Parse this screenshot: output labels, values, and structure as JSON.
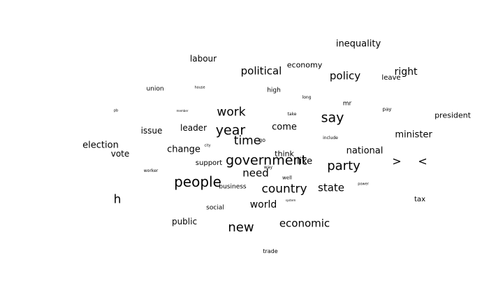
{
  "text_color": "#000000",
  "background": "#ffffff",
  "words": [
    {
      "text": "inequality"
    },
    {
      "text": "labour"
    },
    {
      "text": "economy"
    },
    {
      "text": "political"
    },
    {
      "text": "policy"
    },
    {
      "text": "right"
    },
    {
      "text": "leave"
    },
    {
      "text": "union"
    },
    {
      "text": "house"
    },
    {
      "text": "high"
    },
    {
      "text": "long"
    },
    {
      "text": "mr"
    },
    {
      "text": "work"
    },
    {
      "text": "say"
    },
    {
      "text": "pay"
    },
    {
      "text": "president"
    },
    {
      "text": "take"
    },
    {
      "text": "year"
    },
    {
      "text": "come"
    },
    {
      "text": "issue"
    },
    {
      "text": "leader"
    },
    {
      "text": "minister"
    },
    {
      "text": "time"
    },
    {
      "text": "go"
    },
    {
      "text": "include"
    },
    {
      "text": "election"
    },
    {
      "text": "vote"
    },
    {
      "text": "change"
    },
    {
      "text": "national"
    },
    {
      "text": "think"
    },
    {
      "text": "government"
    },
    {
      "text": "like"
    },
    {
      "text": "support"
    },
    {
      "text": "party"
    },
    {
      "text": ">"
    },
    {
      "text": "<"
    },
    {
      "text": "worker"
    },
    {
      "text": "need"
    },
    {
      "text": "way"
    },
    {
      "text": "well"
    },
    {
      "text": "people"
    },
    {
      "text": "business"
    },
    {
      "text": "country"
    },
    {
      "text": "state"
    },
    {
      "text": "power"
    },
    {
      "text": "h"
    },
    {
      "text": "tax"
    },
    {
      "text": "world"
    },
    {
      "text": "system"
    },
    {
      "text": "social"
    },
    {
      "text": "public"
    },
    {
      "text": "new"
    },
    {
      "text": "economic"
    },
    {
      "text": "trade"
    },
    {
      "text": "pb"
    },
    {
      "text": "member"
    },
    {
      "text": "city"
    }
  ]
}
